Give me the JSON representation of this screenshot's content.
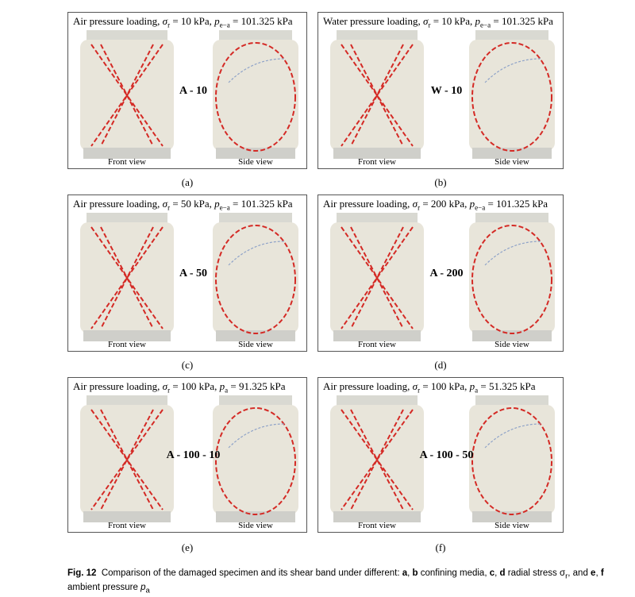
{
  "panels": [
    {
      "title": {
        "medium": "Air pressure loading,",
        "stress_symbol": "σ",
        "stress_sub": "r",
        "stress_value": "= 10 kPa,",
        "pressure_symbol": "p",
        "pressure_sub": "e−a",
        "pressure_value": "= 101.325 kPa"
      },
      "specimen": "A - 10",
      "front": "Front view",
      "side": "Side view",
      "sublabel": "(a)"
    },
    {
      "title": {
        "medium": "Water pressure loading,",
        "stress_symbol": "σ",
        "stress_sub": "r",
        "stress_value": "= 10 kPa,",
        "pressure_symbol": "p",
        "pressure_sub": "e−a",
        "pressure_value": "= 101.325 kPa"
      },
      "specimen": "W - 10",
      "front": "Front view",
      "side": "Side view",
      "sublabel": "(b)"
    },
    {
      "title": {
        "medium": "Air pressure loading,",
        "stress_symbol": "σ",
        "stress_sub": "r",
        "stress_value": "= 50 kPa,",
        "pressure_symbol": "p",
        "pressure_sub": "e−a",
        "pressure_value": "= 101.325 kPa"
      },
      "specimen": "A - 50",
      "front": "Front view",
      "side": "Side view",
      "sublabel": "(c)"
    },
    {
      "title": {
        "medium": "Air pressure loading,",
        "stress_symbol": "σ",
        "stress_sub": "r",
        "stress_value": "= 200 kPa,",
        "pressure_symbol": "p",
        "pressure_sub": "e−a",
        "pressure_value": "= 101.325 kPa"
      },
      "specimen": "A - 200",
      "front": "Front view",
      "side": "Side view",
      "sublabel": "(d)"
    },
    {
      "title": {
        "medium": "Air pressure loading,",
        "stress_symbol": "σ",
        "stress_sub": "r",
        "stress_value": "= 100 kPa,",
        "pressure_symbol": "p",
        "pressure_sub": "a",
        "pressure_value": "= 91.325 kPa"
      },
      "specimen": "A - 100 - 10",
      "front": "Front view",
      "side": "Side view",
      "sublabel": "(e)"
    },
    {
      "title": {
        "medium": "Air pressure loading,",
        "stress_symbol": "σ",
        "stress_sub": "r",
        "stress_value": "= 100 kPa,",
        "pressure_symbol": "p",
        "pressure_sub": "a",
        "pressure_value": "= 51.325 kPa"
      },
      "specimen": "A - 100 - 50",
      "front": "Front view",
      "side": "Side view",
      "sublabel": "(f)"
    }
  ],
  "caption": {
    "figure": "Fig. 12",
    "text1": "Comparison of the damaged specimen and its shear band under different:",
    "b1": "a",
    "t2": ",",
    "b2": "b",
    "t3": "confining media,",
    "b3": "c",
    "t4": ",",
    "b4": "d",
    "t5": "radial stress σ",
    "t5sub": "r",
    "t6": ", and",
    "b5": "e",
    "t7": ",",
    "b6": "f",
    "t8": "ambient pressure",
    "t9": "p",
    "t9sub": "a"
  }
}
